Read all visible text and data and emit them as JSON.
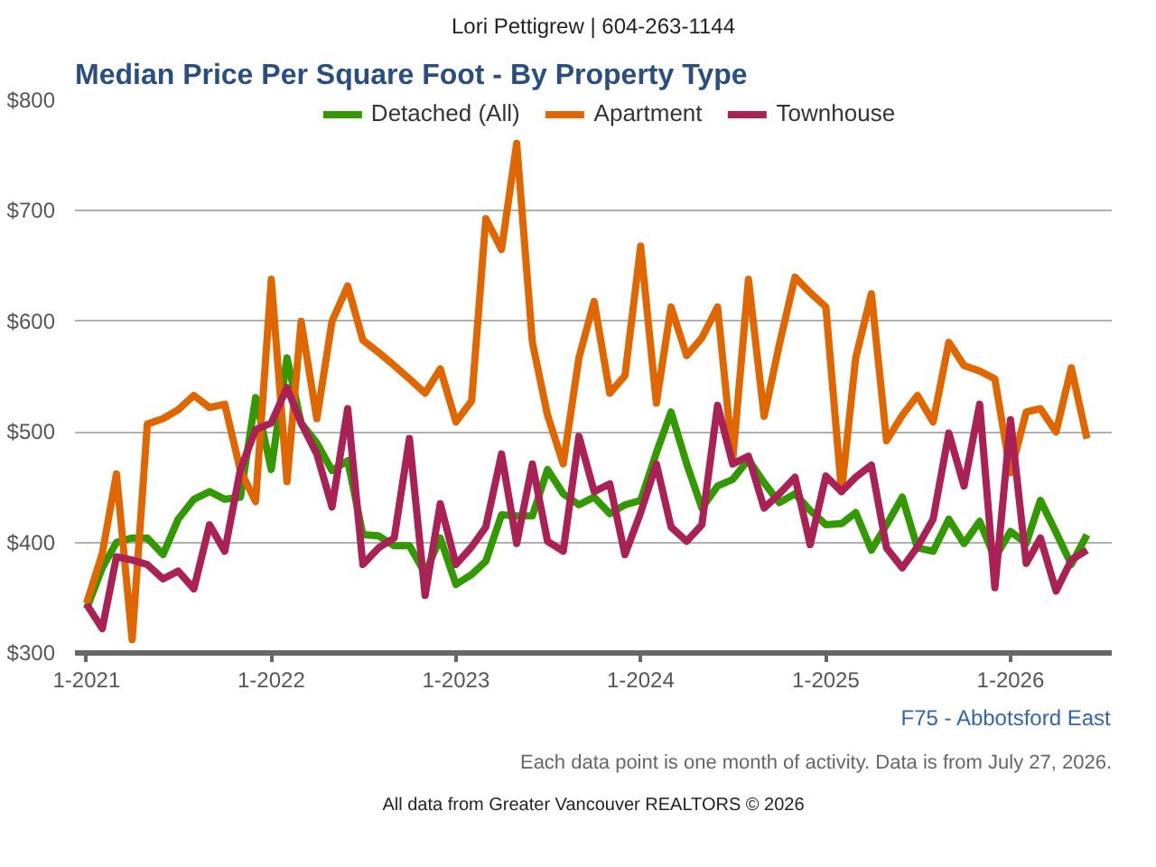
{
  "chart_data": {
    "type": "line",
    "title": "Median Price Per Square Foot - By Property Type",
    "subtitle": "Lori Pettigrew | 604-263-1144",
    "annotations": [
      "F75 - Abbotsford East",
      "Each data point is one month of activity. Data is from July 27, 2026.",
      "All data from Greater Vancouver REALTORS © 2026"
    ],
    "x": [
      "2021-01",
      "2021-02",
      "2021-03",
      "2021-04",
      "2021-05",
      "2021-06",
      "2021-07",
      "2021-08",
      "2021-09",
      "2021-10",
      "2021-11",
      "2021-12",
      "2022-01",
      "2022-02",
      "2022-03",
      "2022-04",
      "2022-05",
      "2022-06",
      "2022-07",
      "2022-08",
      "2022-09",
      "2022-10",
      "2022-11",
      "2022-12",
      "2023-01",
      "2023-02",
      "2023-03",
      "2023-04",
      "2023-05",
      "2023-06",
      "2023-07",
      "2023-08",
      "2023-09",
      "2023-10",
      "2023-11",
      "2023-12",
      "2024-01",
      "2024-02",
      "2024-03",
      "2024-04",
      "2024-05",
      "2024-06",
      "2024-07",
      "2024-08",
      "2024-09",
      "2024-10",
      "2024-11",
      "2024-12",
      "2025-01",
      "2025-02",
      "2025-03",
      "2025-04",
      "2025-05",
      "2025-06",
      "2025-07",
      "2025-08",
      "2025-09",
      "2025-10",
      "2025-11",
      "2025-12",
      "2026-01",
      "2026-02",
      "2026-03",
      "2026-04",
      "2026-05",
      "2026-06"
    ],
    "series": [
      {
        "name": "Detached (All)",
        "color": "#339900",
        "values": [
          340,
          377,
          400,
          404,
          404,
          389,
          421,
          439,
          446,
          439,
          441,
          531,
          466,
          567,
          508,
          490,
          465,
          474,
          407,
          406,
          397,
          397,
          372,
          404,
          362,
          371,
          383,
          425,
          424,
          424,
          466,
          444,
          434,
          441,
          426,
          434,
          438,
          481,
          518,
          471,
          431,
          451,
          457,
          475,
          454,
          436,
          444,
          429,
          416,
          417,
          427,
          393,
          416,
          441,
          395,
          392,
          421,
          399,
          419,
          386,
          410,
          399,
          438,
          409,
          380,
          407
        ]
      },
      {
        "name": "Apartment",
        "color": "#e06600",
        "values": [
          345,
          390,
          462,
          312,
          507,
          512,
          520,
          533,
          522,
          525,
          465,
          437,
          638,
          455,
          600,
          512,
          600,
          632,
          583,
          572,
          560,
          548,
          535,
          557,
          509,
          528,
          693,
          665,
          761,
          581,
          515,
          471,
          567,
          618,
          535,
          551,
          668,
          526,
          613,
          569,
          585,
          613,
          475,
          638,
          514,
          579,
          640,
          626,
          613,
          446,
          567,
          625,
          492,
          515,
          533,
          509,
          581,
          560,
          555,
          548,
          463,
          518,
          521,
          500,
          558,
          494
        ]
      },
      {
        "name": "Townhouse",
        "color": "#aa2255",
        "values": [
          344,
          322,
          387,
          384,
          380,
          367,
          374,
          358,
          416,
          392,
          466,
          502,
          508,
          540,
          508,
          480,
          432,
          521,
          380,
          395,
          404,
          494,
          352,
          435,
          380,
          396,
          414,
          480,
          399,
          471,
          401,
          392,
          496,
          446,
          453,
          389,
          427,
          471,
          414,
          401,
          416,
          524,
          471,
          478,
          431,
          444,
          459,
          398,
          460,
          446,
          459,
          470,
          395,
          377,
          396,
          421,
          499,
          451,
          525,
          359,
          511,
          381,
          404,
          356,
          384,
          393
        ]
      }
    ],
    "xlim": [
      "2020-12-09",
      "2026-07-20"
    ],
    "xticks": [
      {
        "value": "2021-01",
        "label": "1-2021"
      },
      {
        "value": "2022-01",
        "label": "1-2022"
      },
      {
        "value": "2023-01",
        "label": "1-2023"
      },
      {
        "value": "2024-01",
        "label": "1-2024"
      },
      {
        "value": "2025-01",
        "label": "1-2025"
      },
      {
        "value": "2026-01",
        "label": "1-2026"
      }
    ],
    "ylim": [
      300,
      800
    ],
    "yticks": [
      {
        "value": 300,
        "label": "$300"
      },
      {
        "value": 400,
        "label": "$400"
      },
      {
        "value": 500,
        "label": "$500"
      },
      {
        "value": 600,
        "label": "$600"
      },
      {
        "value": 700,
        "label": "$700"
      },
      {
        "value": 800,
        "label": "$800"
      }
    ],
    "grid": "y",
    "legend": "top",
    "line_style": "solid",
    "marker": "none"
  }
}
